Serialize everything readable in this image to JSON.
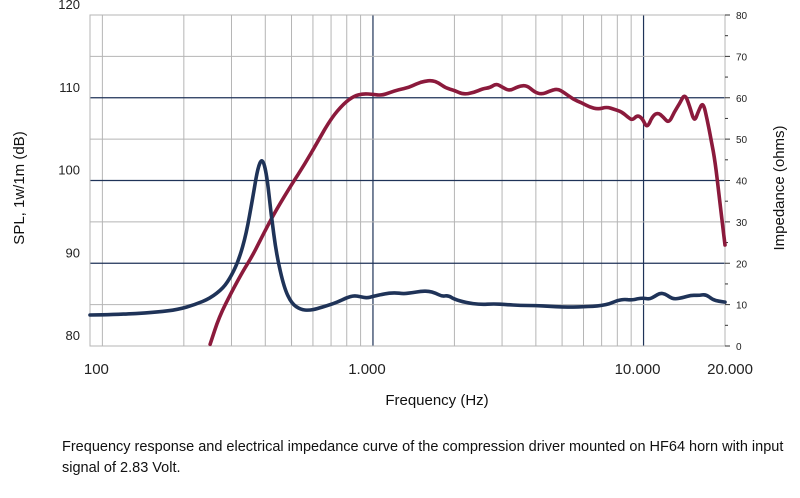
{
  "caption": "Frequency response and electrical impedance curve of the compression driver mounted on HF64 horn with input signal of 2.83 Volt.",
  "chart_data": {
    "type": "line",
    "xlabel": "Frequency (Hz)",
    "ylabel_left": "SPL, 1w/1m (dB)",
    "ylabel_right": "Impedance (ohms)",
    "x_scale": "log",
    "xlim": [
      90,
      20000
    ],
    "ylim_left": [
      80,
      120
    ],
    "ylim_right": [
      0,
      80
    ],
    "x_ticks": [
      {
        "value": 100,
        "label": "100"
      },
      {
        "value": 1000,
        "label": "1.000"
      },
      {
        "value": 10000,
        "label": "10.000"
      },
      {
        "value": 20000,
        "label": "20.000"
      }
    ],
    "y_ticks_left": [
      {
        "value": 80,
        "label": "80"
      },
      {
        "value": 90,
        "label": "90"
      },
      {
        "value": 100,
        "label": "100"
      },
      {
        "value": 110,
        "label": "110"
      },
      {
        "value": 120,
        "label": "120"
      }
    ],
    "y_ticks_right": [
      {
        "value": 0,
        "label": "0"
      },
      {
        "value": 10,
        "label": "10"
      },
      {
        "value": 20,
        "label": "20"
      },
      {
        "value": 30,
        "label": "30"
      },
      {
        "value": 40,
        "label": "40"
      },
      {
        "value": 50,
        "label": "50"
      },
      {
        "value": 60,
        "label": "60"
      },
      {
        "value": 70,
        "label": "70"
      },
      {
        "value": 80,
        "label": "80"
      }
    ],
    "grid": true,
    "colors": {
      "spl": "#8b1a3c",
      "impedance": "#1f3358",
      "grid": "#b5b5b5",
      "grid_major": "#1f3358"
    },
    "series": [
      {
        "id": "spl",
        "axis": "left",
        "x": [
          250,
          270,
          300,
          330,
          360,
          400,
          440,
          500,
          560,
          620,
          700,
          780,
          850,
          920,
          1000,
          1080,
          1150,
          1250,
          1350,
          1450,
          1550,
          1650,
          1750,
          1850,
          2000,
          2150,
          2350,
          2550,
          2700,
          2850,
          3000,
          3200,
          3450,
          3700,
          3950,
          4200,
          4500,
          4800,
          5100,
          5500,
          5900,
          6300,
          6800,
          7300,
          7800,
          8300,
          8800,
          9100,
          9500,
          9900,
          10300,
          10800,
          11300,
          11800,
          12400,
          13000,
          13600,
          14200,
          14800,
          15400,
          16000,
          16600,
          17200,
          17800,
          18400,
          19000,
          19500,
          20000
        ],
        "y": [
          80.2,
          83.5,
          86.5,
          89,
          91,
          94,
          96.5,
          99.5,
          102,
          104.5,
          107.5,
          109.3,
          110.2,
          110.5,
          110.4,
          110.3,
          110.6,
          111,
          111.2,
          111.7,
          112,
          112.1,
          111.8,
          111.2,
          110.9,
          110.4,
          110.6,
          111.1,
          111.2,
          111.7,
          111.3,
          110.8,
          111.4,
          111.5,
          110.7,
          110.4,
          110.8,
          111.1,
          110.6,
          109.8,
          109.4,
          108.9,
          108.6,
          108.9,
          108.6,
          108.3,
          107.6,
          107.3,
          107.9,
          107.5,
          106.3,
          107.8,
          108.2,
          107.7,
          106.9,
          108.3,
          109.3,
          110.5,
          109.0,
          107.0,
          108.5,
          109.5,
          107.3,
          104.8,
          102.2,
          98.3,
          95.2,
          92.2
        ]
      },
      {
        "id": "impedance",
        "axis": "right",
        "x": [
          90,
          110,
          130,
          160,
          190,
          220,
          250,
          280,
          300,
          320,
          340,
          360,
          375,
          390,
          405,
          420,
          440,
          470,
          500,
          540,
          580,
          620,
          680,
          740,
          800,
          850,
          900,
          950,
          1000,
          1100,
          1200,
          1300,
          1400,
          1500,
          1600,
          1700,
          1800,
          1900,
          2000,
          2200,
          2500,
          2800,
          3100,
          3500,
          4000,
          4500,
          5000,
          5500,
          6000,
          6500,
          7000,
          7500,
          8000,
          8500,
          9000,
          9500,
          10000,
          10500,
          11000,
          11500,
          12000,
          12500,
          13000,
          14000,
          15000,
          16000,
          17000,
          18000,
          19000,
          20000
        ],
        "y": [
          7.5,
          7.6,
          7.8,
          8.2,
          8.8,
          10.0,
          11.5,
          14.0,
          17.0,
          21.0,
          27.0,
          36.0,
          43.0,
          45.5,
          41.5,
          32.0,
          22.0,
          14.0,
          10.3,
          8.8,
          8.6,
          9.0,
          9.8,
          10.6,
          11.7,
          12.2,
          11.9,
          11.6,
          12.0,
          12.6,
          12.9,
          12.6,
          12.9,
          13.2,
          13.3,
          12.8,
          12.0,
          12.2,
          11.3,
          10.5,
          10.0,
          10.2,
          10.0,
          9.8,
          9.8,
          9.6,
          9.4,
          9.4,
          9.5,
          9.6,
          9.8,
          10.2,
          11.0,
          11.3,
          11.1,
          11.4,
          11.6,
          11.3,
          12.0,
          12.8,
          12.6,
          11.8,
          11.3,
          11.7,
          12.3,
          12.2,
          12.5,
          11.2,
          10.8,
          10.6
        ]
      }
    ]
  }
}
